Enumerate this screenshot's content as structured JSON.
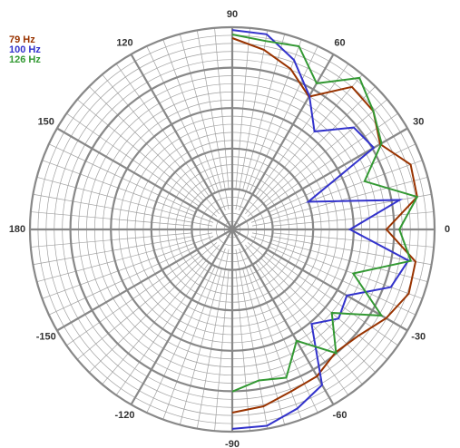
{
  "chart_data": {
    "type": "polar",
    "theta": [
      90,
      80,
      70,
      60,
      50,
      40,
      30,
      20,
      10,
      0,
      -10,
      -20,
      -30,
      -40,
      -50,
      -60,
      -70,
      -80,
      -90
    ],
    "series": [
      {
        "name": "79 Hz",
        "color": "#993300",
        "values": [
          47.3,
          45.1,
          42.2,
          37.9,
          46.0,
          45.5,
          42.2,
          46.9,
          46.4,
          38.1,
          46.0,
          46.4,
          43.9,
          40.8,
          39.7,
          41.9,
          42.6,
          44.4,
          45.3
        ]
      },
      {
        "name": "100 Hz",
        "color": "#3333cc",
        "values": [
          49.3,
          49.0,
          44.6,
          38.1,
          31.6,
          39.2,
          40.4,
          20.0,
          42.0,
          29.1,
          44.2,
          41.7,
          32.7,
          34.3,
          30.5,
          44.4,
          47.1,
          49.3,
          49.3
        ]
      },
      {
        "name": "126 Hz",
        "color": "#339933",
        "values": [
          48.2,
          47.3,
          48.2,
          41.7,
          48.9,
          45.5,
          42.6,
          34.8,
          46.4,
          41.3,
          44.8,
          31.8,
          42.6,
          32.1,
          39.9,
          31.8,
          39.0,
          37.9,
          40.1
        ]
      }
    ],
    "rlim": [
      0,
      50
    ],
    "rticks": [
      10,
      20,
      30,
      40,
      50
    ],
    "thetaticks": [
      90,
      60,
      30,
      0,
      -30,
      -60,
      -90,
      -120,
      -150,
      180,
      150,
      120
    ],
    "grid": true,
    "legend": "top-left"
  }
}
